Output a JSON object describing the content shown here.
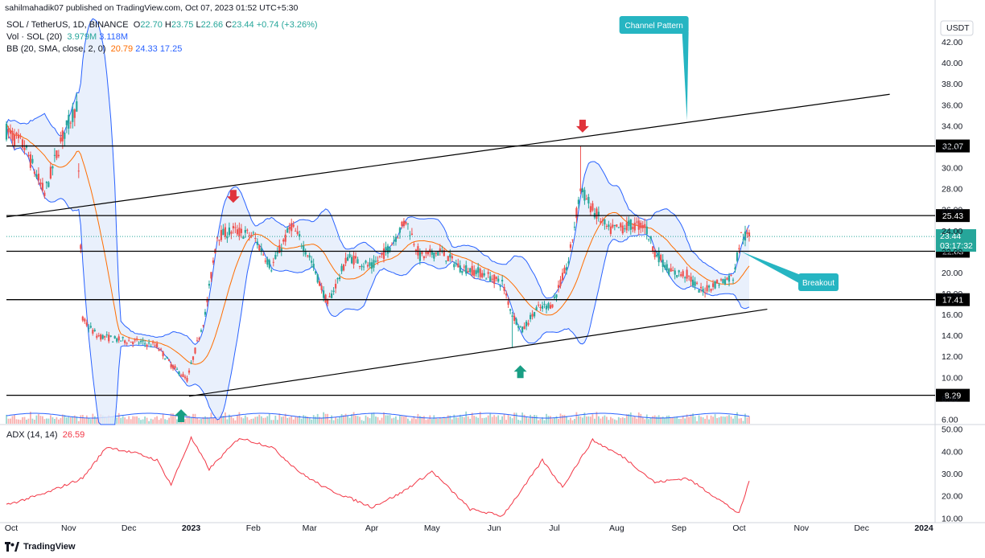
{
  "publisher_line": "sahilmahadik07 published on TradingView.com, Oct 07, 2023 01:52 UTC+5:30",
  "branding": "TradingView",
  "quote_currency": "USDT",
  "legend": {
    "symbol": "SOL / TetherUS, 1D, BINANCE",
    "ohlc": {
      "o_label": "O",
      "o": "22.70",
      "h_label": "H",
      "h": "23.75",
      "l_label": "L",
      "l": "22.66",
      "c_label": "C",
      "c": "23.44",
      "change": "+0.74 (+3.26%)"
    },
    "vol_label": "Vol · SOL (20)",
    "vol_values": [
      "3.979M",
      "3.118M"
    ],
    "bb_label": "BB (20, SMA, close, 2, 0)",
    "bb_values": [
      "20.79",
      "24.33",
      "17.25"
    ],
    "adx_label": "ADX (14, 14)",
    "adx_value": "26.59"
  },
  "annotations": {
    "channel_pattern": "Channel Pattern",
    "breakout": "Breakout"
  },
  "colors": {
    "up": "#26a69a",
    "down": "#ef5350",
    "bb_band": "#2962ff",
    "bb_basis": "#ff6d00",
    "bb_fill": "#e3ecfb",
    "adx": "#f23645",
    "callout": "#26b5c2",
    "arrow_down": "#e0333b",
    "arrow_up": "#199e84",
    "last_price": "#26a69a"
  },
  "chart_data": {
    "type": "candlestick",
    "title": "SOL / TetherUS, 1D, BINANCE",
    "x_axis": {
      "ticks": [
        "Oct",
        "Nov",
        "Dec",
        "2023",
        "Feb",
        "Mar",
        "Apr",
        "May",
        "Jun",
        "Jul",
        "Aug",
        "Sep",
        "Oct",
        "Nov",
        "Dec",
        "2024"
      ]
    },
    "price_axis": {
      "ticks": [
        "42.00",
        "40.00",
        "38.00",
        "36.00",
        "34.00",
        "32.00",
        "30.00",
        "28.00",
        "26.00",
        "24.00",
        "22.00",
        "20.00",
        "18.00",
        "16.00",
        "14.00",
        "12.00",
        "10.00",
        "8.00",
        "6.00"
      ],
      "ylim": [
        5.5,
        44
      ]
    },
    "adx_axis": {
      "ticks": [
        "50.00",
        "40.00",
        "30.00",
        "20.00",
        "10.00"
      ],
      "ylim": [
        8,
        52
      ]
    },
    "horizontal_levels": [
      "32.07",
      "25.43",
      "22.03",
      "17.41",
      "8.29"
    ],
    "last_price": {
      "value": "23.44",
      "countdown": "03:17:32"
    },
    "channel_lines": {
      "upper": [
        {
          "date": "2022-10-01",
          "price": 25.3
        },
        {
          "date": "2023-12-15",
          "price": 37.0
        }
      ],
      "lower": [
        {
          "date": "2022-12-31",
          "price": 8.2
        },
        {
          "date": "2023-10-15",
          "price": 16.5
        }
      ]
    },
    "price_path": [
      [
        "2022-10-01",
        33.5
      ],
      [
        "2022-10-10",
        32.0
      ],
      [
        "2022-10-20",
        27.5
      ],
      [
        "2022-10-28",
        32.5
      ],
      [
        "2022-11-05",
        36.0
      ],
      [
        "2022-11-08",
        15.5
      ],
      [
        "2022-11-15",
        14.0
      ],
      [
        "2022-11-25",
        13.6
      ],
      [
        "2022-12-05",
        13.4
      ],
      [
        "2022-12-15",
        13.0
      ],
      [
        "2022-12-22",
        11.2
      ],
      [
        "2022-12-30",
        9.8
      ],
      [
        "2023-01-08",
        16.0
      ],
      [
        "2023-01-14",
        23.5
      ],
      [
        "2023-01-22",
        24.0
      ],
      [
        "2023-02-01",
        23.5
      ],
      [
        "2023-02-10",
        20.5
      ],
      [
        "2023-02-20",
        24.5
      ],
      [
        "2023-03-01",
        21.5
      ],
      [
        "2023-03-10",
        17.0
      ],
      [
        "2023-03-20",
        21.5
      ],
      [
        "2023-04-01",
        20.5
      ],
      [
        "2023-04-10",
        22.5
      ],
      [
        "2023-04-18",
        25.0
      ],
      [
        "2023-04-25",
        21.5
      ],
      [
        "2023-05-05",
        22.0
      ],
      [
        "2023-05-15",
        20.5
      ],
      [
        "2023-05-25",
        20.0
      ],
      [
        "2023-06-05",
        19.0
      ],
      [
        "2023-06-10",
        16.0
      ],
      [
        "2023-06-15",
        14.5
      ],
      [
        "2023-06-22",
        16.5
      ],
      [
        "2023-06-30",
        17.0
      ],
      [
        "2023-07-08",
        21.0
      ],
      [
        "2023-07-14",
        28.0
      ],
      [
        "2023-07-20",
        26.0
      ],
      [
        "2023-07-28",
        24.0
      ],
      [
        "2023-08-08",
        24.5
      ],
      [
        "2023-08-15",
        24.5
      ],
      [
        "2023-08-20",
        22.0
      ],
      [
        "2023-08-28",
        20.0
      ],
      [
        "2023-09-05",
        19.8
      ],
      [
        "2023-09-12",
        18.2
      ],
      [
        "2023-09-20",
        19.0
      ],
      [
        "2023-09-28",
        19.6
      ],
      [
        "2023-10-02",
        23.5
      ],
      [
        "2023-10-06",
        23.44
      ]
    ],
    "adx_series": [
      [
        "2022-10-01",
        16
      ],
      [
        "2022-10-20",
        21
      ],
      [
        "2022-11-08",
        28
      ],
      [
        "2022-11-20",
        42
      ],
      [
        "2022-12-05",
        39
      ],
      [
        "2022-12-15",
        36
      ],
      [
        "2022-12-22",
        25
      ],
      [
        "2023-01-01",
        46
      ],
      [
        "2023-01-10",
        32
      ],
      [
        "2023-01-25",
        46
      ],
      [
        "2023-02-10",
        42
      ],
      [
        "2023-02-25",
        30
      ],
      [
        "2023-03-10",
        23
      ],
      [
        "2023-04-01",
        15
      ],
      [
        "2023-04-15",
        21
      ],
      [
        "2023-05-01",
        31
      ],
      [
        "2023-05-20",
        14
      ],
      [
        "2023-06-05",
        11
      ],
      [
        "2023-06-15",
        23
      ],
      [
        "2023-06-25",
        36
      ],
      [
        "2023-07-05",
        24
      ],
      [
        "2023-07-20",
        45
      ],
      [
        "2023-08-05",
        37
      ],
      [
        "2023-08-20",
        26
      ],
      [
        "2023-09-05",
        28
      ],
      [
        "2023-09-20",
        19
      ],
      [
        "2023-10-01",
        12
      ],
      [
        "2023-10-06",
        26.59
      ]
    ]
  }
}
